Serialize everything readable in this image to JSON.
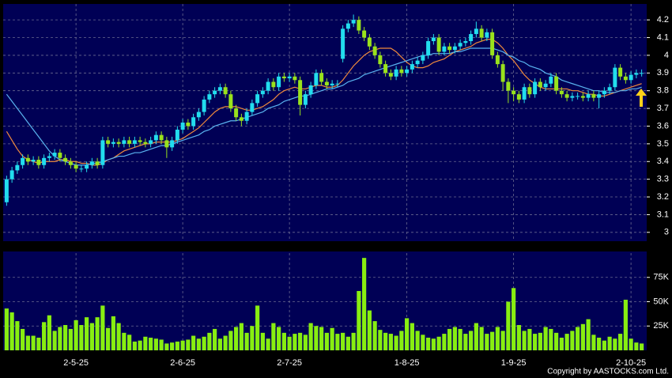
{
  "chart_data": [
    {
      "type": "candlestick",
      "open": [
        3.17,
        3.3,
        3.35,
        3.38,
        3.42,
        3.4,
        3.41,
        3.38,
        3.42,
        3.43,
        3.45,
        3.42,
        3.4,
        3.38,
        3.36,
        3.36,
        3.38,
        3.4,
        3.38,
        3.52,
        3.5,
        3.51,
        3.5,
        3.52,
        3.5,
        3.52,
        3.51,
        3.5,
        3.52,
        3.55,
        3.52,
        3.48,
        3.52,
        3.58,
        3.62,
        3.6,
        3.65,
        3.68,
        3.75,
        3.78,
        3.8,
        3.82,
        3.78,
        3.7,
        3.65,
        3.63,
        3.68,
        3.73,
        3.78,
        3.8,
        3.85,
        3.82,
        3.88,
        3.87,
        3.88,
        3.86,
        3.72,
        3.78,
        3.83,
        3.9,
        3.85,
        3.83,
        3.84,
        3.98,
        4.15,
        4.18,
        4.2,
        4.14,
        4.1,
        4.05,
        4.0,
        3.95,
        3.9,
        3.88,
        3.92,
        3.9,
        3.92,
        3.95,
        3.97,
        4.0,
        4.08,
        4.1,
        4.02,
        4.05,
        4.03,
        4.05,
        4.07,
        4.08,
        4.12,
        4.15,
        4.1,
        4.13,
        4.0,
        3.95,
        3.85,
        3.8,
        3.78,
        3.75,
        3.82,
        3.78,
        3.85,
        3.82,
        3.84,
        3.88,
        3.8,
        3.78,
        3.76,
        3.77,
        3.77,
        3.76,
        3.78,
        3.76,
        3.78,
        3.8,
        3.82,
        3.93,
        3.88,
        3.86,
        3.89,
        3.9
      ],
      "high": [
        3.32,
        3.37,
        3.4,
        3.44,
        3.44,
        3.43,
        3.43,
        3.44,
        3.45,
        3.47,
        3.47,
        3.44,
        3.42,
        3.4,
        3.38,
        3.4,
        3.42,
        3.42,
        3.54,
        3.54,
        3.53,
        3.53,
        3.54,
        3.54,
        3.54,
        3.54,
        3.53,
        3.54,
        3.57,
        3.57,
        3.54,
        3.54,
        3.6,
        3.64,
        3.64,
        3.67,
        3.7,
        3.77,
        3.8,
        3.82,
        3.84,
        3.84,
        3.8,
        3.72,
        3.67,
        3.7,
        3.75,
        3.8,
        3.82,
        3.87,
        3.87,
        3.9,
        3.9,
        3.9,
        3.9,
        3.88,
        3.8,
        3.85,
        3.92,
        3.92,
        3.87,
        3.86,
        3.86,
        4.17,
        4.2,
        4.23,
        4.22,
        4.16,
        4.12,
        4.07,
        4.02,
        3.97,
        3.92,
        3.94,
        3.94,
        3.94,
        3.97,
        3.99,
        4.02,
        4.1,
        4.12,
        4.12,
        4.07,
        4.07,
        4.07,
        4.09,
        4.1,
        4.14,
        4.19,
        4.17,
        4.15,
        4.15,
        4.02,
        3.97,
        3.87,
        3.82,
        3.8,
        3.84,
        3.84,
        3.87,
        3.87,
        3.86,
        3.9,
        3.9,
        3.82,
        3.8,
        3.79,
        3.79,
        3.79,
        3.8,
        3.8,
        3.8,
        3.82,
        3.84,
        3.95,
        3.95,
        3.9,
        3.91,
        3.92,
        3.92
      ],
      "low": [
        3.15,
        3.28,
        3.33,
        3.36,
        3.38,
        3.38,
        3.36,
        3.36,
        3.4,
        3.41,
        3.4,
        3.38,
        3.36,
        3.34,
        3.34,
        3.34,
        3.36,
        3.36,
        3.36,
        3.48,
        3.48,
        3.48,
        3.48,
        3.48,
        3.48,
        3.49,
        3.48,
        3.48,
        3.5,
        3.5,
        3.42,
        3.46,
        3.5,
        3.56,
        3.58,
        3.58,
        3.63,
        3.66,
        3.73,
        3.76,
        3.78,
        3.76,
        3.68,
        3.63,
        3.6,
        3.61,
        3.66,
        3.71,
        3.76,
        3.78,
        3.8,
        3.8,
        3.85,
        3.85,
        3.84,
        3.66,
        3.7,
        3.76,
        3.81,
        3.83,
        3.81,
        3.81,
        3.82,
        3.96,
        4.13,
        4.16,
        4.12,
        4.08,
        4.03,
        3.98,
        3.93,
        3.88,
        3.86,
        3.86,
        3.88,
        3.88,
        3.9,
        3.93,
        3.95,
        3.98,
        4.06,
        4.0,
        4.0,
        4.01,
        4.01,
        4.03,
        4.05,
        4.06,
        4.1,
        4.08,
        4.08,
        3.98,
        3.93,
        3.8,
        3.73,
        3.74,
        3.73,
        3.73,
        3.76,
        3.76,
        3.8,
        3.8,
        3.82,
        3.78,
        3.76,
        3.74,
        3.74,
        3.75,
        3.74,
        3.74,
        3.74,
        3.7,
        3.76,
        3.78,
        3.8,
        3.86,
        3.84,
        3.84,
        3.87,
        3.88
      ],
      "close": [
        3.3,
        3.35,
        3.38,
        3.42,
        3.4,
        3.41,
        3.38,
        3.42,
        3.43,
        3.45,
        3.42,
        3.4,
        3.38,
        3.36,
        3.36,
        3.38,
        3.4,
        3.38,
        3.52,
        3.5,
        3.51,
        3.5,
        3.52,
        3.5,
        3.52,
        3.51,
        3.5,
        3.52,
        3.55,
        3.52,
        3.48,
        3.52,
        3.58,
        3.62,
        3.6,
        3.65,
        3.68,
        3.75,
        3.78,
        3.8,
        3.82,
        3.78,
        3.7,
        3.65,
        3.63,
        3.68,
        3.73,
        3.78,
        3.8,
        3.85,
        3.82,
        3.88,
        3.87,
        3.88,
        3.86,
        3.72,
        3.78,
        3.83,
        3.9,
        3.85,
        3.83,
        3.84,
        3.84,
        4.15,
        4.18,
        4.2,
        4.14,
        4.1,
        4.05,
        4.0,
        3.95,
        3.9,
        3.88,
        3.92,
        3.9,
        3.92,
        3.95,
        3.97,
        4.0,
        4.08,
        4.1,
        4.02,
        4.05,
        4.03,
        4.05,
        4.07,
        4.08,
        4.12,
        4.15,
        4.1,
        4.13,
        4.0,
        3.95,
        3.85,
        3.8,
        3.78,
        3.75,
        3.82,
        3.78,
        3.85,
        3.82,
        3.84,
        3.88,
        3.8,
        3.78,
        3.76,
        3.77,
        3.77,
        3.76,
        3.78,
        3.76,
        3.78,
        3.8,
        3.82,
        3.93,
        3.88,
        3.86,
        3.89,
        3.9,
        3.9
      ],
      "up_color": "#22ddee",
      "down_color": "#99e21c",
      "lines": [
        {
          "color": "#f08a3c",
          "values": [
            3.57,
            3.52,
            3.47,
            3.43,
            3.41,
            3.4,
            3.39,
            3.4,
            3.4,
            3.4,
            3.41,
            3.41,
            3.4,
            3.4,
            3.39,
            3.39,
            3.38,
            3.38,
            3.39,
            3.41,
            3.42,
            3.44,
            3.46,
            3.47,
            3.48,
            3.49,
            3.5,
            3.5,
            3.51,
            3.51,
            3.51,
            3.51,
            3.52,
            3.53,
            3.55,
            3.57,
            3.59,
            3.62,
            3.65,
            3.68,
            3.7,
            3.71,
            3.71,
            3.71,
            3.7,
            3.69,
            3.69,
            3.7,
            3.71,
            3.73,
            3.75,
            3.78,
            3.8,
            3.81,
            3.82,
            3.81,
            3.81,
            3.82,
            3.83,
            3.83,
            3.82,
            3.82,
            3.83,
            3.86,
            3.9,
            3.94,
            3.97,
            4.0,
            4.02,
            4.03,
            4.04,
            4.04,
            4.04,
            4.02,
            3.99,
            3.96,
            3.94,
            3.93,
            3.93,
            3.94,
            3.96,
            3.97,
            3.98,
            4.0,
            4.02,
            4.03,
            4.04,
            4.05,
            4.07,
            4.08,
            4.09,
            4.09,
            4.07,
            4.04,
            4.0,
            3.97,
            3.93,
            3.89,
            3.86,
            3.84,
            3.82,
            3.81,
            3.81,
            3.81,
            3.81,
            3.81,
            3.8,
            3.8,
            3.79,
            3.78,
            3.78,
            3.77,
            3.77,
            3.78,
            3.79,
            3.8,
            3.81,
            3.82,
            3.83,
            3.84
          ]
        },
        {
          "color": "#5ab4f0",
          "values": [
            3.78,
            3.74,
            3.7,
            3.66,
            3.62,
            3.58,
            3.54,
            3.5,
            3.46,
            3.43,
            3.41,
            3.4,
            3.39,
            3.38,
            3.38,
            3.38,
            3.39,
            3.39,
            3.4,
            3.41,
            3.42,
            3.43,
            3.43,
            3.44,
            3.45,
            3.45,
            3.46,
            3.47,
            3.48,
            3.49,
            3.49,
            3.5,
            3.51,
            3.52,
            3.53,
            3.54,
            3.55,
            3.57,
            3.58,
            3.6,
            3.61,
            3.62,
            3.63,
            3.63,
            3.64,
            3.65,
            3.66,
            3.67,
            3.68,
            3.7,
            3.71,
            3.72,
            3.74,
            3.75,
            3.76,
            3.77,
            3.77,
            3.78,
            3.79,
            3.8,
            3.81,
            3.81,
            3.82,
            3.83,
            3.85,
            3.86,
            3.87,
            3.89,
            3.9,
            3.91,
            3.92,
            3.93,
            3.94,
            3.95,
            3.96,
            3.97,
            3.98,
            3.99,
            4.0,
            4.0,
            4.01,
            4.01,
            4.01,
            4.01,
            4.02,
            4.02,
            4.03,
            4.04,
            4.04,
            4.04,
            4.04,
            4.04,
            4.03,
            4.02,
            4.0,
            3.99,
            3.97,
            3.96,
            3.94,
            3.93,
            3.92,
            3.9,
            3.89,
            3.88,
            3.86,
            3.85,
            3.84,
            3.83,
            3.82,
            3.81,
            3.8,
            3.8,
            3.79,
            3.79,
            3.79,
            3.8,
            3.8,
            3.81,
            3.81,
            3.82
          ]
        }
      ],
      "ylim": [
        2.95,
        4.29
      ],
      "yticks": [
        3,
        3.1,
        3.2,
        3.3,
        3.4,
        3.5,
        3.6,
        3.7,
        3.8,
        3.9,
        4,
        4.1,
        4.2
      ],
      "grid": true
    },
    {
      "type": "bar",
      "categories": [
        null,
        null,
        null,
        null,
        null,
        null,
        null,
        null,
        null,
        null,
        null,
        null,
        null,
        "2-5-25",
        null,
        null,
        null,
        null,
        null,
        null,
        null,
        null,
        null,
        null,
        null,
        null,
        null,
        null,
        null,
        null,
        null,
        null,
        null,
        "2-6-25",
        null,
        null,
        null,
        null,
        null,
        null,
        null,
        null,
        null,
        null,
        null,
        null,
        null,
        null,
        null,
        null,
        null,
        null,
        null,
        "2-7-25",
        null,
        null,
        null,
        null,
        null,
        null,
        null,
        null,
        null,
        null,
        null,
        null,
        null,
        null,
        null,
        null,
        null,
        null,
        null,
        null,
        null,
        "1-8-25",
        null,
        null,
        null,
        null,
        null,
        null,
        null,
        null,
        null,
        null,
        null,
        null,
        null,
        null,
        null,
        null,
        null,
        null,
        null,
        "1-9-25",
        null,
        null,
        null,
        null,
        null,
        null,
        null,
        null,
        null,
        null,
        null,
        null,
        null,
        null,
        null,
        null,
        null,
        null,
        null,
        null,
        null,
        "2-10-25",
        null,
        null
      ],
      "values": [
        43000,
        39000,
        30000,
        22000,
        15000,
        15000,
        13000,
        29000,
        36000,
        20000,
        24000,
        26000,
        22000,
        31000,
        26000,
        34000,
        28000,
        34000,
        46000,
        23000,
        35000,
        28000,
        18000,
        16000,
        9000,
        10000,
        14000,
        13000,
        12000,
        11000,
        7000,
        8000,
        9000,
        10000,
        11000,
        15000,
        12000,
        14000,
        18000,
        22000,
        12000,
        15000,
        20000,
        24000,
        28000,
        18000,
        25000,
        46000,
        18000,
        12000,
        28000,
        24000,
        18000,
        14000,
        17000,
        18000,
        16000,
        28000,
        25000,
        24000,
        18000,
        23000,
        17000,
        18000,
        14000,
        18000,
        61000,
        95000,
        41000,
        30000,
        21000,
        18000,
        17000,
        15000,
        20000,
        33000,
        28000,
        20000,
        16000,
        13000,
        12000,
        14000,
        17000,
        22000,
        24000,
        22000,
        17000,
        20000,
        28000,
        24000,
        17000,
        19000,
        24000,
        20000,
        50000,
        64000,
        26000,
        20000,
        22000,
        17000,
        18000,
        24000,
        22000,
        18000,
        13000,
        17000,
        20000,
        24000,
        27000,
        32000,
        16000,
        13000,
        10000,
        14000,
        12000,
        17000,
        52000,
        12000,
        8000,
        7000
      ],
      "color": "#88ee11",
      "ylim": [
        0,
        100000
      ],
      "yticks": [
        {
          "value": 25000,
          "label": "25K"
        },
        {
          "value": 50000,
          "label": "50K"
        },
        {
          "value": 75000,
          "label": "75K"
        }
      ],
      "grid": true
    }
  ],
  "copyright": "Copyright by AASTOCKS.com Ltd."
}
